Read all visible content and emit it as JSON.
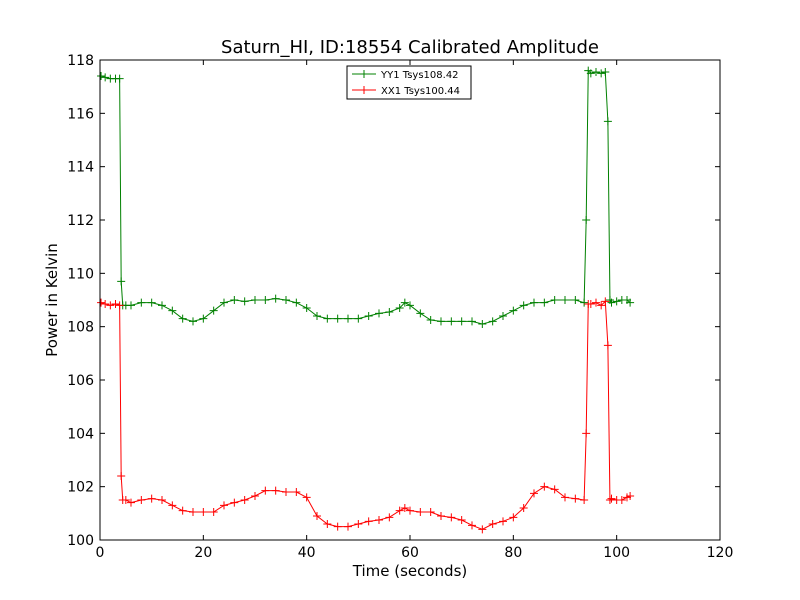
{
  "chart_data": {
    "type": "line",
    "title": "Saturn_HI, ID:18554 Calibrated Amplitude",
    "xlabel": "Time (seconds)",
    "ylabel": "Power in Kelvin",
    "xlim": [
      0,
      120
    ],
    "ylim": [
      100,
      118
    ],
    "xticks": [
      0,
      20,
      40,
      60,
      80,
      100,
      120
    ],
    "yticks": [
      100,
      102,
      104,
      106,
      108,
      110,
      112,
      114,
      116,
      118
    ],
    "grid": false,
    "legend_position": "top-center",
    "series": [
      {
        "name": "YY1 Tsys108.42",
        "color": "#008000",
        "x": [
          0.2,
          1,
          2,
          3,
          3.8,
          4.1,
          4.4,
          5,
          6,
          8,
          10,
          12,
          14,
          16,
          18,
          20,
          22,
          24,
          26,
          28,
          30,
          32,
          34,
          36,
          38,
          40,
          42,
          44,
          46,
          48,
          50,
          52,
          54,
          56,
          58,
          59,
          60,
          62,
          64,
          66,
          68,
          70,
          72,
          74,
          76,
          78,
          80,
          82,
          84,
          86,
          88,
          90,
          92,
          93.7,
          94.1,
          94.5,
          95,
          96,
          97,
          97.8,
          98.3,
          98.7,
          99,
          100,
          101,
          102,
          102.6
        ],
        "values": [
          117.4,
          117.35,
          117.3,
          117.3,
          117.3,
          109.7,
          108.8,
          108.8,
          108.8,
          108.9,
          108.9,
          108.8,
          108.6,
          108.3,
          108.2,
          108.3,
          108.6,
          108.9,
          109.0,
          108.95,
          109.0,
          109.0,
          109.05,
          109.0,
          108.9,
          108.7,
          108.4,
          108.3,
          108.3,
          108.3,
          108.3,
          108.4,
          108.5,
          108.55,
          108.7,
          108.9,
          108.8,
          108.5,
          108.25,
          108.2,
          108.2,
          108.2,
          108.2,
          108.1,
          108.2,
          108.4,
          108.6,
          108.8,
          108.9,
          108.9,
          109.0,
          109.0,
          109.0,
          108.9,
          112.0,
          117.6,
          117.5,
          117.55,
          117.5,
          117.55,
          115.7,
          109.0,
          108.9,
          108.95,
          109.0,
          109.0,
          108.9
        ]
      },
      {
        "name": "XX1 Tsys100.44",
        "color": "#ff0000",
        "x": [
          0.2,
          1,
          2,
          3,
          3.8,
          4.1,
          4.4,
          5,
          6,
          8,
          10,
          12,
          14,
          16,
          18,
          20,
          22,
          24,
          26,
          28,
          30,
          32,
          34,
          36,
          38,
          40,
          42,
          44,
          46,
          48,
          50,
          52,
          54,
          56,
          58,
          59,
          60,
          62,
          64,
          66,
          68,
          70,
          72,
          74,
          76,
          78,
          80,
          82,
          84,
          86,
          88,
          90,
          92,
          93.7,
          94.1,
          94.5,
          95,
          96,
          97,
          97.8,
          98.3,
          98.7,
          99,
          100,
          101,
          102,
          102.6
        ],
        "values": [
          108.9,
          108.85,
          108.8,
          108.85,
          108.8,
          102.4,
          101.5,
          101.5,
          101.4,
          101.5,
          101.55,
          101.5,
          101.3,
          101.1,
          101.05,
          101.05,
          101.05,
          101.3,
          101.4,
          101.5,
          101.65,
          101.85,
          101.85,
          101.8,
          101.8,
          101.6,
          100.9,
          100.6,
          100.5,
          100.5,
          100.6,
          100.7,
          100.75,
          100.85,
          101.1,
          101.2,
          101.1,
          101.05,
          101.05,
          100.9,
          100.85,
          100.75,
          100.55,
          100.4,
          100.6,
          100.7,
          100.85,
          101.2,
          101.75,
          102.0,
          101.9,
          101.6,
          101.55,
          101.5,
          104.0,
          108.85,
          108.85,
          108.9,
          108.8,
          108.95,
          107.3,
          101.5,
          101.55,
          101.5,
          101.5,
          101.6,
          101.65
        ]
      }
    ]
  }
}
